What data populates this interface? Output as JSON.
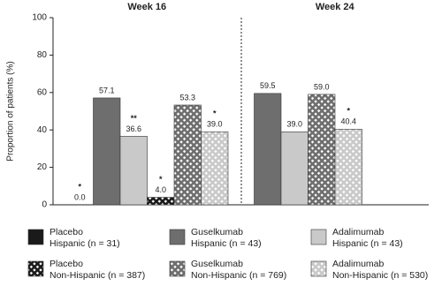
{
  "chart_data": {
    "type": "bar",
    "y_label": "Proportion of patients (%)",
    "categories": [
      "Week 16",
      "Week 24"
    ],
    "ylim": [
      0,
      100
    ],
    "yticks": [
      0,
      20,
      40,
      60,
      80,
      100
    ],
    "series": [
      {
        "name": "Placebo",
        "subgroup": "Hispanic (n = 31)",
        "color": "#1a1a1a",
        "pattern": "solid",
        "values": [
          0.0,
          null
        ],
        "value_labels": [
          "0.0",
          null
        ],
        "annotations": [
          "*",
          null
        ]
      },
      {
        "name": "Guselkumab",
        "subgroup": "Hispanic (n = 43)",
        "color": "#6e6e6e",
        "pattern": "solid",
        "values": [
          57.1,
          59.5
        ],
        "value_labels": [
          "57.1",
          "59.5"
        ],
        "annotations": [
          null,
          null
        ]
      },
      {
        "name": "Adalimumab",
        "subgroup": "Hispanic (n = 43)",
        "color": "#c9c9c9",
        "pattern": "solid",
        "values": [
          36.6,
          39.0
        ],
        "value_labels": [
          "36.6",
          "39.0"
        ],
        "annotations": [
          "**",
          null
        ]
      },
      {
        "name": "Placebo",
        "subgroup": "Non-Hispanic (n = 387)",
        "color": "#1a1a1a",
        "pattern": "crosshatch",
        "values": [
          4.0,
          null
        ],
        "value_labels": [
          "4.0",
          null
        ],
        "annotations": [
          "*",
          null
        ]
      },
      {
        "name": "Guselkumab",
        "subgroup": "Non-Hispanic (n = 769)",
        "color": "#6e6e6e",
        "pattern": "crosshatch",
        "values": [
          53.3,
          59.0
        ],
        "value_labels": [
          "53.3",
          "59.0"
        ],
        "annotations": [
          null,
          null
        ]
      },
      {
        "name": "Adalimumab",
        "subgroup": "Non-Hispanic (n = 530)",
        "color": "#c9c9c9",
        "pattern": "crosshatch",
        "values": [
          39.0,
          40.4
        ],
        "value_labels": [
          "39.0",
          "40.4"
        ],
        "annotations": [
          "*",
          "*"
        ]
      }
    ]
  }
}
